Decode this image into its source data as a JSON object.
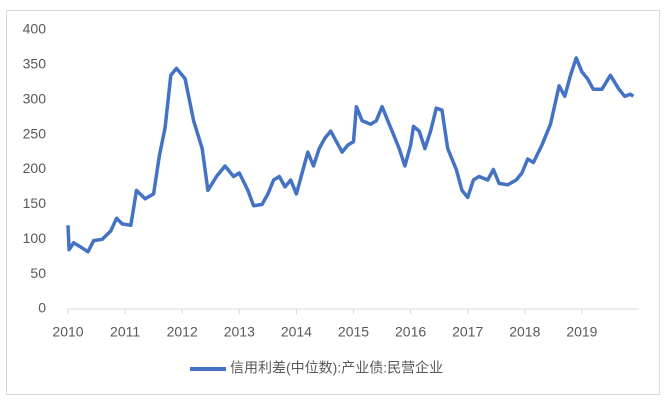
{
  "chart_data": {
    "type": "line",
    "x": [
      2010.0,
      2010.02,
      2010.1,
      2010.2,
      2010.35,
      2010.45,
      2010.6,
      2010.75,
      2010.85,
      2010.95,
      2011.1,
      2011.2,
      2011.35,
      2011.5,
      2011.6,
      2011.7,
      2011.8,
      2011.9,
      2012.05,
      2012.2,
      2012.35,
      2012.45,
      2012.6,
      2012.75,
      2012.9,
      2013.0,
      2013.15,
      2013.25,
      2013.4,
      2013.5,
      2013.6,
      2013.7,
      2013.8,
      2013.9,
      2014.0,
      2014.1,
      2014.2,
      2014.3,
      2014.4,
      2014.5,
      2014.6,
      2014.7,
      2014.8,
      2014.9,
      2015.0,
      2015.05,
      2015.15,
      2015.3,
      2015.4,
      2015.5,
      2015.6,
      2015.7,
      2015.8,
      2015.9,
      2016.0,
      2016.05,
      2016.15,
      2016.25,
      2016.35,
      2016.45,
      2016.55,
      2016.65,
      2016.8,
      2016.9,
      2017.0,
      2017.1,
      2017.2,
      2017.35,
      2017.45,
      2017.55,
      2017.7,
      2017.85,
      2017.95,
      2018.05,
      2018.15,
      2018.3,
      2018.45,
      2018.6,
      2018.7,
      2018.8,
      2018.9,
      2019.0,
      2019.1,
      2019.2,
      2019.35,
      2019.5,
      2019.65,
      2019.75,
      2019.85,
      2019.9
    ],
    "series": [
      {
        "name": "信用利差(中位数):产业债:民营企业",
        "color": "#4472c4",
        "values": [
          120,
          85,
          95,
          90,
          82,
          98,
          100,
          112,
          130,
          122,
          120,
          170,
          158,
          165,
          220,
          260,
          335,
          345,
          330,
          270,
          230,
          170,
          190,
          205,
          190,
          195,
          170,
          148,
          150,
          165,
          185,
          190,
          175,
          185,
          165,
          195,
          225,
          205,
          230,
          245,
          255,
          240,
          225,
          235,
          240,
          290,
          270,
          265,
          270,
          290,
          270,
          250,
          230,
          205,
          235,
          262,
          255,
          230,
          255,
          288,
          285,
          230,
          200,
          170,
          160,
          185,
          190,
          185,
          200,
          180,
          178,
          185,
          195,
          215,
          210,
          235,
          265,
          320,
          305,
          335,
          360,
          340,
          330,
          315,
          315,
          335,
          315,
          305,
          308,
          305
        ]
      }
    ],
    "xlim": [
      2010,
      2020
    ],
    "xticks": [
      2010,
      2011,
      2012,
      2013,
      2014,
      2015,
      2016,
      2017,
      2018,
      2019
    ],
    "ylim": [
      0,
      400
    ],
    "yticks": [
      0,
      50,
      100,
      150,
      200,
      250,
      300,
      350,
      400
    ],
    "grid": false,
    "legend": "bottom"
  }
}
